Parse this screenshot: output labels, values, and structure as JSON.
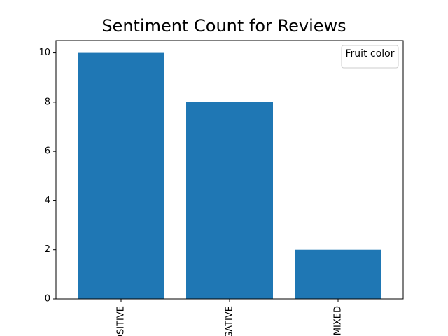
{
  "chart_data": {
    "type": "bar",
    "title": "Sentiment Count for Reviews",
    "categories": [
      "POSITIVE",
      "NEGATIVE",
      "MIXED"
    ],
    "values": [
      10,
      8,
      2
    ],
    "xlabel": "",
    "ylabel": "",
    "ylim": [
      0,
      10.5
    ],
    "yticks": [
      0,
      2,
      4,
      6,
      8,
      10
    ],
    "legend": {
      "title": "Fruit color",
      "placement": "top-right"
    },
    "bar_color": "#1f77b4",
    "grid": false
  }
}
